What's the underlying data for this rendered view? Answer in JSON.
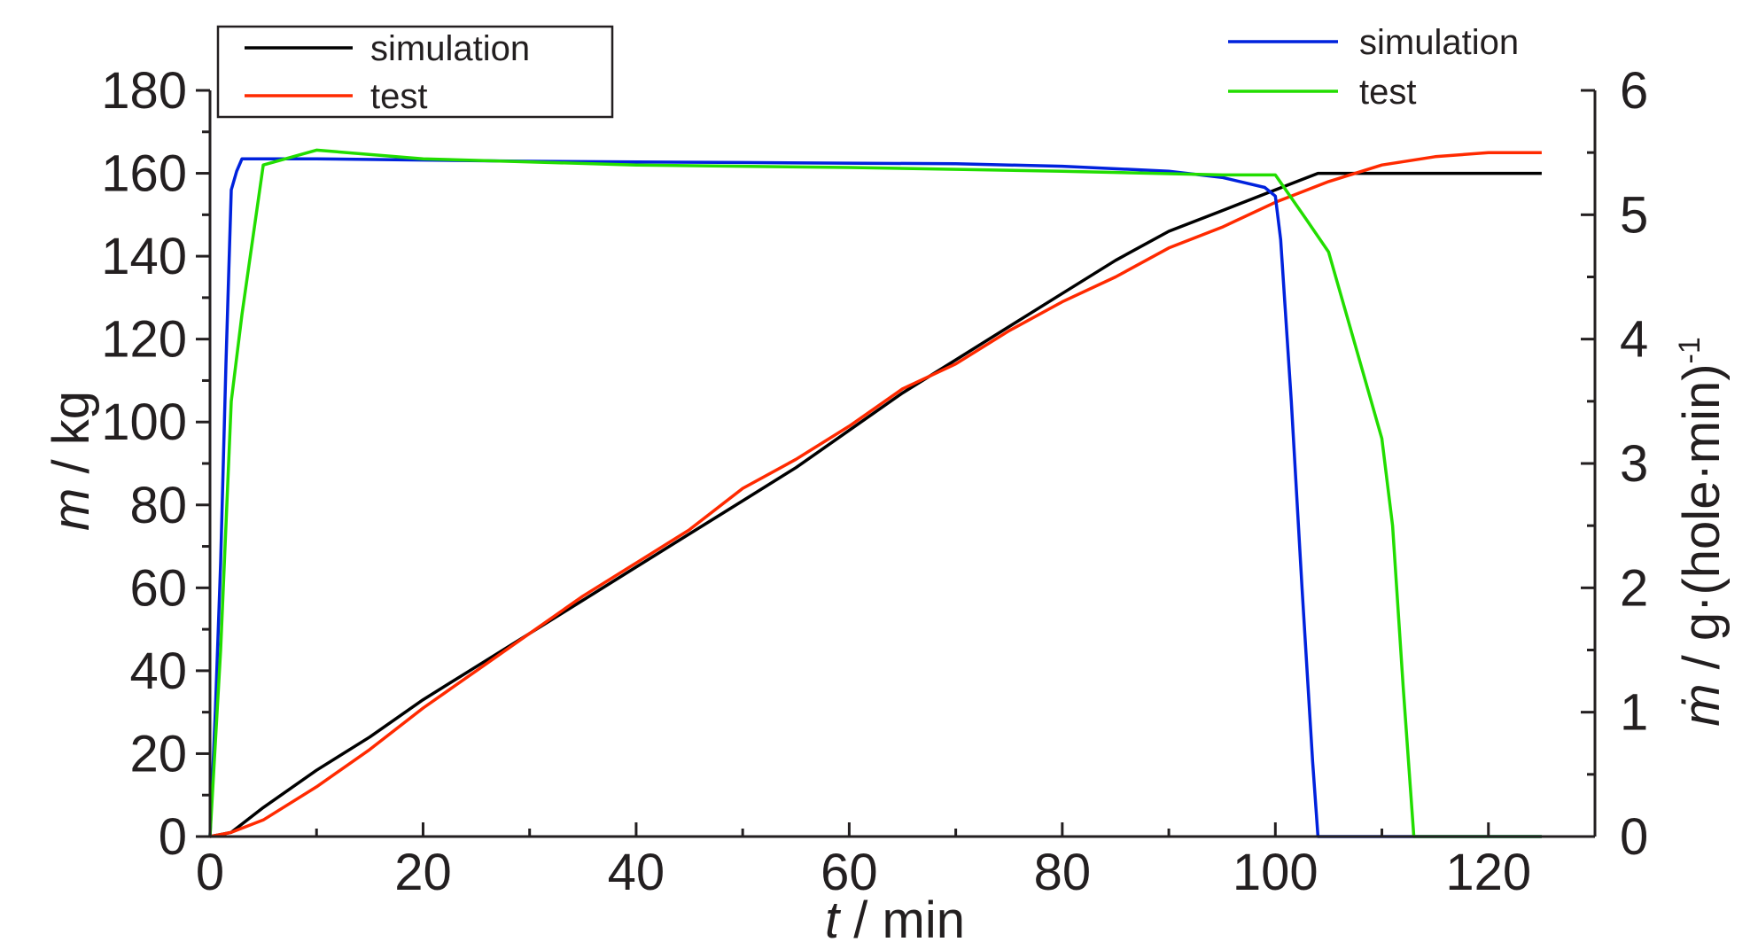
{
  "chart_data": {
    "type": "line",
    "x_axis": {
      "label_var": "t",
      "label_unit": " / min",
      "range": [
        0,
        130
      ],
      "ticks": [
        0,
        20,
        40,
        60,
        80,
        100,
        120
      ]
    },
    "y_left": {
      "label_var": "m",
      "label_unit": " / kg",
      "range": [
        0,
        180
      ],
      "ticks": [
        0,
        20,
        40,
        60,
        80,
        100,
        120,
        140,
        160,
        180
      ]
    },
    "y_right": {
      "label_var": "ṁ",
      "label_unit": " / g·(hole·min)",
      "label_sup": "-1",
      "range": [
        0,
        6
      ],
      "ticks": [
        0,
        1,
        2,
        3,
        4,
        5,
        6
      ]
    },
    "grid": false,
    "legends": [
      {
        "position": "top-left",
        "boxed": true,
        "entries": [
          {
            "name": "simulation",
            "color": "#000000"
          },
          {
            "name": "test",
            "color": "#ff2a00"
          }
        ]
      },
      {
        "position": "top-right",
        "boxed": false,
        "entries": [
          {
            "name": "simulation",
            "color": "#0022dd"
          },
          {
            "name": "test",
            "color": "#22dd00"
          }
        ]
      }
    ],
    "series": [
      {
        "name": "simulation",
        "axis": "left",
        "color": "#000000",
        "x": [
          0,
          2,
          5,
          10,
          15,
          20,
          25,
          30,
          35,
          40,
          45,
          50,
          55,
          60,
          65,
          70,
          75,
          80,
          85,
          90,
          95,
          100,
          103,
          104,
          110,
          115,
          120,
          125
        ],
        "y": [
          0,
          1,
          7,
          16,
          24,
          33,
          41,
          49,
          57,
          65,
          73,
          81,
          89,
          98,
          107,
          115,
          123,
          131,
          139,
          146,
          151,
          156,
          159,
          160,
          160,
          160,
          160,
          160
        ]
      },
      {
        "name": "test",
        "axis": "left",
        "color": "#ff2a00",
        "x": [
          0,
          2,
          5,
          10,
          15,
          20,
          25,
          30,
          35,
          40,
          45,
          50,
          55,
          60,
          65,
          70,
          75,
          80,
          85,
          90,
          95,
          100,
          105,
          110,
          115,
          120,
          125
        ],
        "y": [
          0,
          1,
          4,
          12,
          21,
          31,
          40,
          49,
          58,
          66,
          74,
          84,
          91,
          99,
          108,
          114,
          122,
          129,
          135,
          142,
          147,
          153,
          158,
          162,
          164,
          165,
          165
        ]
      },
      {
        "name": "simulation",
        "axis": "right",
        "color": "#0022dd",
        "x": [
          0,
          0.5,
          1,
          1.5,
          2,
          2.5,
          3,
          10,
          30,
          50,
          70,
          80,
          90,
          95,
          99,
          100,
          100.5,
          101.5,
          102.5,
          103.5,
          104,
          110,
          120,
          125
        ],
        "y": [
          0,
          1.0,
          2.2,
          3.8,
          5.2,
          5.35,
          5.45,
          5.45,
          5.43,
          5.42,
          5.41,
          5.39,
          5.35,
          5.3,
          5.22,
          5.15,
          4.8,
          3.5,
          2.0,
          0.6,
          0,
          0,
          0,
          0
        ]
      },
      {
        "name": "test",
        "axis": "right",
        "color": "#22dd00",
        "x": [
          0,
          1,
          2,
          3,
          4,
          5,
          10,
          20,
          40,
          60,
          80,
          90,
          95,
          100,
          103,
          105,
          107,
          110,
          111,
          112,
          113,
          115,
          120,
          125
        ],
        "y": [
          0,
          1.5,
          3.5,
          4.2,
          4.8,
          5.4,
          5.52,
          5.45,
          5.4,
          5.38,
          5.35,
          5.33,
          5.32,
          5.32,
          4.95,
          4.7,
          4.1,
          3.2,
          2.5,
          1.2,
          0,
          0,
          0,
          0
        ]
      }
    ]
  }
}
